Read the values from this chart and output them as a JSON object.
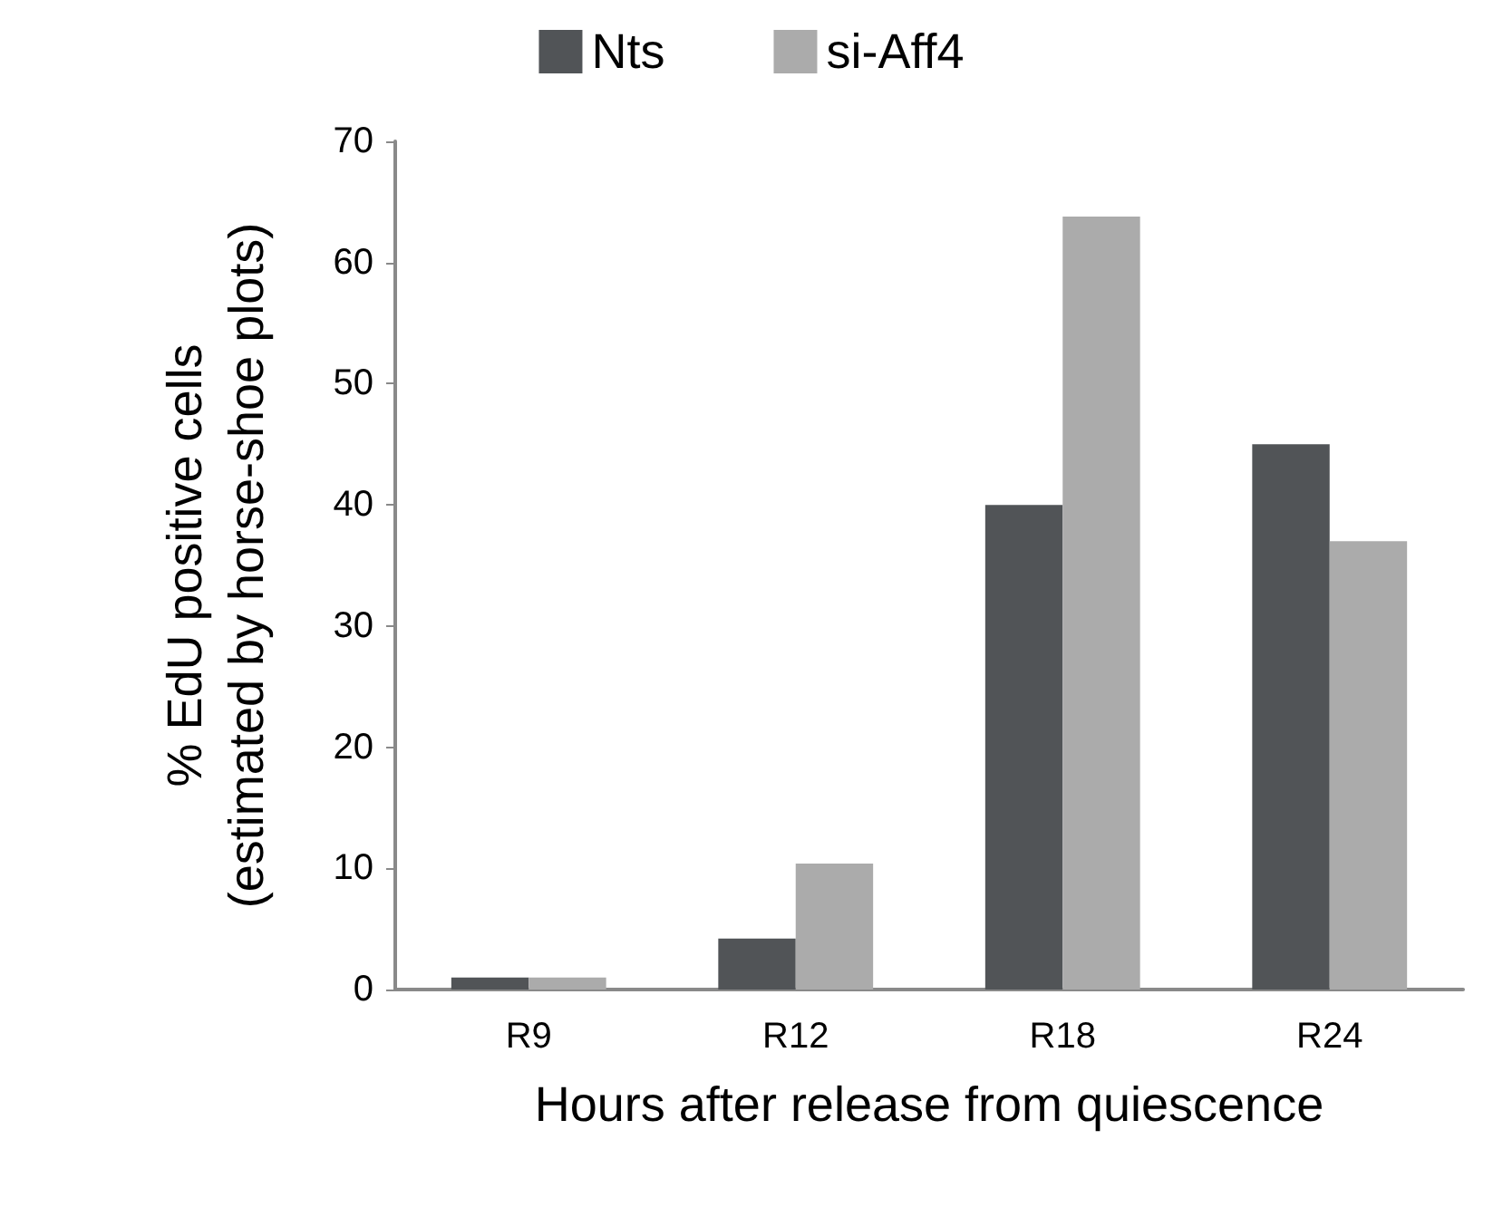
{
  "chart_data": {
    "type": "bar",
    "xlabel": "Hours after release from quiescence",
    "ylabel": "% EdU positive cells\n(estimated by horse-shoe plots)",
    "categories": [
      "R9",
      "R12",
      "R18",
      "R24"
    ],
    "series": [
      {
        "name": "Nts",
        "color": "#515457",
        "values": [
          1.0,
          4.2,
          40,
          45
        ]
      },
      {
        "name": "si-Aff4",
        "color": "#ababab",
        "values": [
          1.0,
          10.4,
          63.8,
          37
        ]
      }
    ],
    "ylim": [
      0,
      70
    ],
    "yticks": [
      0,
      10,
      20,
      30,
      40,
      50,
      60,
      70
    ],
    "grid": false,
    "legend": "top"
  }
}
